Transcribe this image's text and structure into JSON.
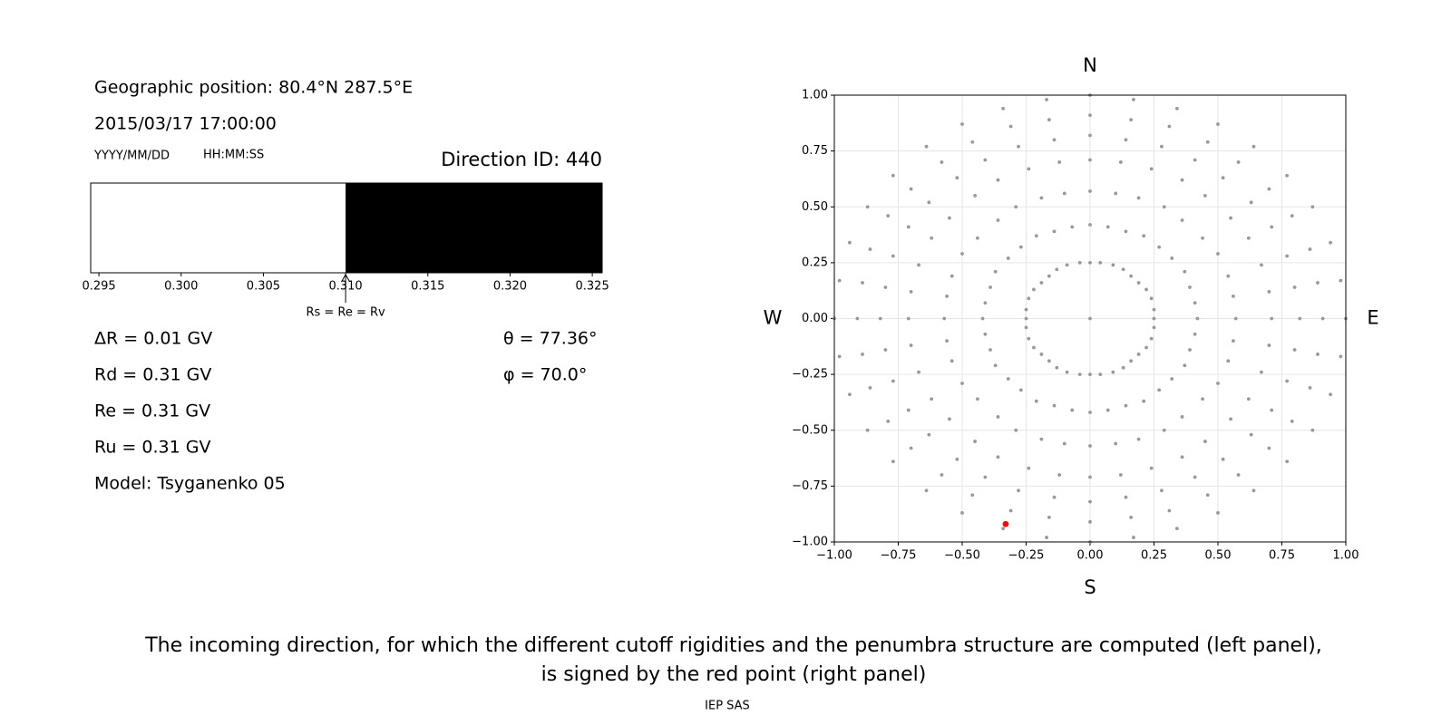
{
  "info": {
    "position": "Geographic position: 80.4°N 287.5°E",
    "datetime": "2015/03/17 17:00:00",
    "date_format": "YYYY/MM/DD",
    "time_format": "HH:MM:SS",
    "direction_id": "Direction ID: 440",
    "left_values": [
      "ΔR = 0.01 GV",
      "Rd = 0.31 GV",
      "Re = 0.31 GV",
      "Ru = 0.31 GV",
      "Model: Tsyganenko 05"
    ],
    "right_values": [
      "θ = 77.36°",
      "φ = 70.0°"
    ]
  },
  "chart_data": [
    {
      "type": "penumbra",
      "xlim": [
        0.2945,
        0.3256
      ],
      "xticks": [
        0.295,
        {
          "value": 0.3,
          "label": "0.300"
        },
        0.305,
        {
          "value": 0.31,
          "label": "0.310"
        },
        0.315,
        {
          "value": 0.32,
          "label": "0.320"
        },
        0.325
      ],
      "regions": [
        {
          "color": "#ffffff",
          "range": [
            0.2945,
            0.31
          ]
        },
        {
          "color": "#000000",
          "range": [
            0.31,
            0.3256
          ]
        }
      ],
      "annotation": {
        "text": "Rs = Re = Rv",
        "x": 0.31
      }
    },
    {
      "type": "scatter",
      "xlim": [
        -1,
        1
      ],
      "ylim": [
        -1,
        1
      ],
      "xticks": [
        {
          "value": -1,
          "label": "−1.00"
        },
        {
          "value": -0.75,
          "label": "−0.75"
        },
        {
          "value": -0.5,
          "label": "−0.50"
        },
        {
          "value": -0.25,
          "label": "−0.25"
        },
        {
          "value": 0,
          "label": "0.00"
        },
        {
          "value": 0.25,
          "label": "0.25"
        },
        {
          "value": 0.5,
          "label": "0.50"
        },
        {
          "value": 0.75,
          "label": "0.75"
        },
        {
          "value": 1,
          "label": "1.00"
        }
      ],
      "yticks": [
        {
          "value": -1,
          "label": "−1.00"
        },
        {
          "value": -0.75,
          "label": "−0.75"
        },
        {
          "value": -0.5,
          "label": "−0.50"
        },
        {
          "value": -0.25,
          "label": "−0.25"
        },
        {
          "value": 0,
          "label": "0.00"
        },
        {
          "value": 0.25,
          "label": "0.25"
        },
        {
          "value": 0.5,
          "label": "0.50"
        },
        {
          "value": 0.75,
          "label": "0.75"
        },
        {
          "value": 1,
          "label": "1.00"
        }
      ],
      "grid": true,
      "direction_labels": {
        "top": "N",
        "bottom": "S",
        "left": "W",
        "right": "E"
      },
      "series": [
        {
          "color": "#999999",
          "x": [
            0,
            0,
            0,
            0,
            0,
            0,
            0,
            0.04,
            0.07,
            0.1,
            0.12,
            0.14,
            0.16,
            0.17,
            0.09,
            0.14,
            0.19,
            0.24,
            0.28,
            0.31,
            0.34,
            0.13,
            0.21,
            0.29,
            0.36,
            0.41,
            0.46,
            0.5,
            0.16,
            0.27,
            0.36,
            0.45,
            0.52,
            0.58,
            0.64,
            0.19,
            0.32,
            0.44,
            0.55,
            0.63,
            0.7,
            0.77,
            0.22,
            0.37,
            0.5,
            0.62,
            0.71,
            0.79,
            0.87,
            0.24,
            0.39,
            0.54,
            0.67,
            0.77,
            0.86,
            0.94,
            0.25,
            0.41,
            0.56,
            0.7,
            0.8,
            0.89,
            0.98,
            0.25,
            0.42,
            0.57,
            0.71,
            0.82,
            0.91,
            1,
            0.25,
            0.41,
            0.56,
            0.7,
            0.8,
            0.89,
            0.98,
            0.24,
            0.39,
            0.54,
            0.67,
            0.77,
            0.86,
            0.94,
            0.22,
            0.37,
            0.5,
            0.62,
            0.71,
            0.79,
            0.87,
            0.19,
            0.32,
            0.44,
            0.55,
            0.63,
            0.7,
            0.77,
            0.16,
            0.27,
            0.36,
            0.45,
            0.52,
            0.58,
            0.64,
            0.13,
            0.21,
            0.29,
            0.36,
            0.41,
            0.46,
            0.5,
            0.09,
            0.14,
            0.19,
            0.24,
            0.28,
            0.31,
            0.34,
            0.04,
            0.07,
            0.1,
            0.12,
            0.14,
            0.16,
            0.17,
            0,
            0,
            0,
            0,
            0,
            0,
            0,
            -0.04,
            -0.07,
            -0.1,
            -0.12,
            -0.14,
            -0.16,
            -0.17,
            -0.09,
            -0.14,
            -0.19,
            -0.24,
            -0.28,
            -0.31,
            -0.34,
            -0.13,
            -0.21,
            -0.29,
            -0.36,
            -0.41,
            -0.46,
            -0.5,
            -0.16,
            -0.27,
            -0.36,
            -0.45,
            -0.52,
            -0.58,
            -0.64,
            -0.19,
            -0.32,
            -0.44,
            -0.55,
            -0.63,
            -0.7,
            -0.77,
            -0.22,
            -0.37,
            -0.5,
            -0.62,
            -0.71,
            -0.79,
            -0.87,
            -0.24,
            -0.39,
            -0.54,
            -0.67,
            -0.77,
            -0.86,
            -0.94,
            -0.25,
            -0.41,
            -0.56,
            -0.7,
            -0.8,
            -0.89,
            -0.98,
            -0.25,
            -0.42,
            -0.57,
            -0.71,
            -0.82,
            -0.91,
            -1,
            -0.25,
            -0.41,
            -0.56,
            -0.7,
            -0.8,
            -0.89,
            -0.98,
            -0.24,
            -0.39,
            -0.54,
            -0.67,
            -0.77,
            -0.86,
            -0.94,
            -0.22,
            -0.37,
            -0.5,
            -0.62,
            -0.71,
            -0.79,
            -0.87,
            -0.19,
            -0.32,
            -0.44,
            -0.55,
            -0.63,
            -0.7,
            -0.77,
            -0.16,
            -0.27,
            -0.36,
            -0.45,
            -0.52,
            -0.58,
            -0.64,
            -0.13,
            -0.21,
            -0.29,
            -0.36,
            -0.41,
            -0.46,
            -0.5,
            -0.09,
            -0.14,
            -0.19,
            -0.24,
            -0.28,
            -0.31,
            -0.34,
            -0.04,
            -0.07,
            -0.1,
            -0.12,
            -0.14,
            -0.16,
            -0.17,
            0
          ],
          "y": [
            0.25,
            0.42,
            0.57,
            0.71,
            0.82,
            0.91,
            1,
            0.25,
            0.41,
            0.56,
            0.7,
            0.8,
            0.89,
            0.98,
            0.24,
            0.39,
            0.54,
            0.67,
            0.77,
            0.86,
            0.94,
            0.22,
            0.37,
            0.5,
            0.62,
            0.71,
            0.79,
            0.87,
            0.19,
            0.32,
            0.44,
            0.55,
            0.63,
            0.7,
            0.77,
            0.16,
            0.27,
            0.36,
            0.45,
            0.52,
            0.58,
            0.64,
            0.13,
            0.21,
            0.29,
            0.36,
            0.41,
            0.46,
            0.5,
            0.09,
            0.14,
            0.19,
            0.24,
            0.28,
            0.31,
            0.34,
            0.04,
            0.07,
            0.1,
            0.12,
            0.14,
            0.16,
            0.17,
            0,
            0,
            0,
            0,
            0,
            0,
            0,
            -0.04,
            -0.07,
            -0.1,
            -0.12,
            -0.14,
            -0.16,
            -0.17,
            -0.09,
            -0.14,
            -0.19,
            -0.24,
            -0.28,
            -0.31,
            -0.34,
            -0.13,
            -0.21,
            -0.29,
            -0.36,
            -0.41,
            -0.46,
            -0.5,
            -0.16,
            -0.27,
            -0.36,
            -0.45,
            -0.52,
            -0.58,
            -0.64,
            -0.19,
            -0.32,
            -0.44,
            -0.55,
            -0.63,
            -0.7,
            -0.77,
            -0.22,
            -0.37,
            -0.5,
            -0.62,
            -0.71,
            -0.79,
            -0.87,
            -0.24,
            -0.39,
            -0.54,
            -0.67,
            -0.77,
            -0.86,
            -0.94,
            -0.25,
            -0.41,
            -0.56,
            -0.7,
            -0.8,
            -0.89,
            -0.98,
            -0.25,
            -0.42,
            -0.57,
            -0.71,
            -0.82,
            -0.91,
            -1,
            -0.25,
            -0.41,
            -0.56,
            -0.7,
            -0.8,
            -0.89,
            -0.98,
            -0.24,
            -0.39,
            -0.54,
            -0.67,
            -0.77,
            -0.86,
            -0.94,
            -0.22,
            -0.37,
            -0.5,
            -0.62,
            -0.71,
            -0.79,
            -0.87,
            -0.19,
            -0.32,
            -0.44,
            -0.55,
            -0.63,
            -0.7,
            -0.77,
            -0.16,
            -0.27,
            -0.36,
            -0.45,
            -0.52,
            -0.58,
            -0.64,
            -0.13,
            -0.21,
            -0.29,
            -0.36,
            -0.41,
            -0.46,
            -0.5,
            -0.09,
            -0.14,
            -0.19,
            -0.24,
            -0.28,
            -0.31,
            -0.34,
            -0.04,
            -0.07,
            -0.1,
            -0.12,
            -0.14,
            -0.16,
            -0.17,
            0,
            0,
            0,
            0,
            0,
            0,
            0,
            0.04,
            0.07,
            0.1,
            0.12,
            0.14,
            0.16,
            0.17,
            0.09,
            0.14,
            0.19,
            0.24,
            0.28,
            0.31,
            0.34,
            0.13,
            0.21,
            0.29,
            0.36,
            0.41,
            0.46,
            0.5,
            0.16,
            0.27,
            0.36,
            0.45,
            0.52,
            0.58,
            0.64,
            0.19,
            0.32,
            0.44,
            0.55,
            0.63,
            0.7,
            0.77,
            0.22,
            0.37,
            0.5,
            0.62,
            0.71,
            0.79,
            0.87,
            0.24,
            0.39,
            0.54,
            0.67,
            0.77,
            0.86,
            0.94,
            0.25,
            0.41,
            0.56,
            0.7,
            0.8,
            0.89,
            0.98,
            0
          ]
        },
        {
          "color": "#ff0000",
          "x": [
            -0.33
          ],
          "y": [
            -0.92
          ]
        }
      ]
    }
  ],
  "caption": [
    "The incoming direction, for which the different cutoff rigidities and the penumbra structure are computed (left panel),",
    "is signed by the red point (right panel)"
  ],
  "footer": "IEP SAS"
}
